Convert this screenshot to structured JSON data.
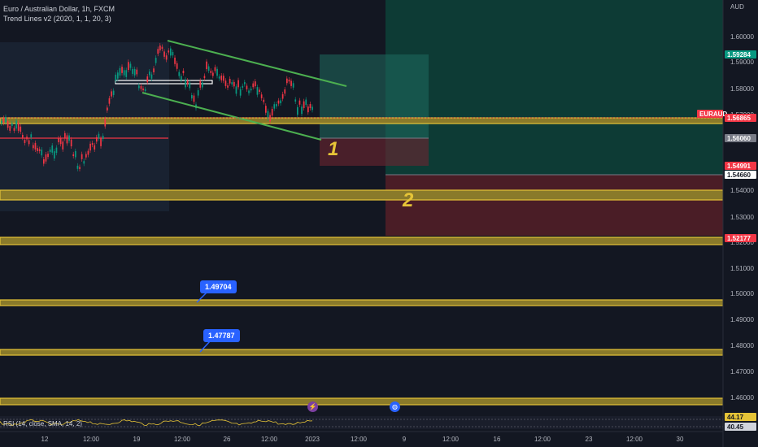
{
  "header": {
    "symbol_line": "Euro / Australian Dollar, 1h, FXCM",
    "indicator_line": "Trend Lines v2 (2020, 1, 1, 20, 3)"
  },
  "price_axis": {
    "currency": "AUD",
    "ticks": [
      "1.60000",
      "1.59000",
      "1.58000",
      "1.57000",
      "1.56000",
      "1.55000",
      "1.54000",
      "1.53000",
      "1.52000",
      "1.51000",
      "1.50000",
      "1.49000",
      "1.48000",
      "1.47000",
      "1.46000"
    ]
  },
  "price_labels": [
    {
      "text": "1.59284",
      "bg": "#089981",
      "fg": "#ffffff"
    },
    {
      "text": "EURAUD",
      "bg": "#f23645",
      "fg": "#ffffff"
    },
    {
      "text": "1.56865",
      "bg": "#f23645",
      "fg": "#ffffff"
    },
    {
      "text": "1.56060",
      "bg": "#787b86",
      "fg": "#ffffff"
    },
    {
      "text": "1.54991",
      "bg": "#f23645",
      "fg": "#ffffff"
    },
    {
      "text": "1.54660",
      "bg": "#ffffff",
      "fg": "#131722"
    },
    {
      "text": "1.52177",
      "bg": "#f23645",
      "fg": "#ffffff"
    },
    {
      "text": "44.17",
      "bg": "#e6c437",
      "fg": "#131722"
    },
    {
      "text": "40.45",
      "bg": "#d1d4dc",
      "fg": "#131722"
    }
  ],
  "time_axis": {
    "ticks": [
      "12",
      "12:00",
      "19",
      "12:00",
      "26",
      "12:00",
      "2023",
      "12:00",
      "9",
      "12:00",
      "16",
      "12:00",
      "23",
      "12:00",
      "30"
    ]
  },
  "annotations": {
    "tip1": "1.49704",
    "tip2": "1.47787",
    "zone1": "1",
    "zone2": "2"
  },
  "rsi": {
    "label": "RSI (14, close, SMA, 14, 2)"
  },
  "colors": {
    "background": "#131722",
    "support_band": "#e6c437",
    "channel": "#4caf50",
    "profit_zone": "#089981",
    "loss_zone": "#f23645"
  }
}
